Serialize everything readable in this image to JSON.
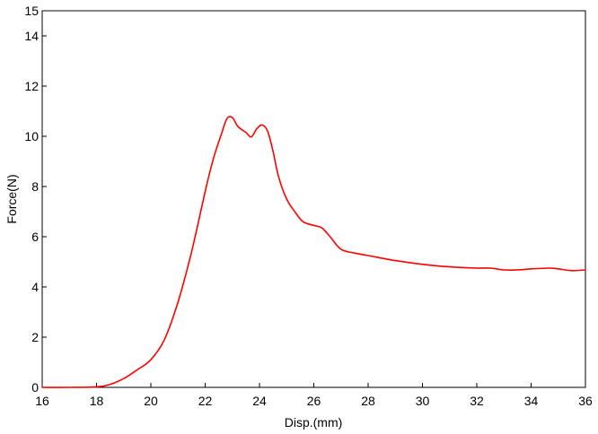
{
  "chart_data": {
    "type": "line",
    "title": "",
    "xlabel": "Disp.(mm)",
    "ylabel": "Force(N)",
    "xlim": [
      16,
      36
    ],
    "ylim": [
      0,
      15
    ],
    "xticks": [
      "16",
      "18",
      "20",
      "22",
      "24",
      "26",
      "28",
      "30",
      "32",
      "34",
      "36"
    ],
    "yticks": [
      "0",
      "2",
      "4",
      "6",
      "8",
      "10",
      "12",
      "14",
      "15"
    ],
    "grid": false,
    "legend": "none",
    "line_color": "#ff0000",
    "series": [
      {
        "x": [
          16.0,
          17.0,
          18.0,
          18.5,
          19.0,
          19.5,
          20.0,
          20.5,
          21.0,
          21.5,
          22.0,
          22.3,
          22.6,
          22.8,
          23.0,
          23.2,
          23.5,
          23.7,
          23.9,
          24.1,
          24.3,
          24.5,
          24.7,
          25.0,
          25.3,
          25.6,
          26.0,
          26.3,
          26.6,
          27.0,
          27.5,
          28.0,
          29.0,
          30.0,
          31.0,
          32.0,
          32.5,
          33.0,
          33.5,
          34.0,
          34.7,
          35.0,
          35.5,
          36.0
        ],
        "y": [
          0.0,
          0.0,
          0.02,
          0.12,
          0.35,
          0.7,
          1.1,
          1.9,
          3.4,
          5.4,
          7.8,
          9.1,
          10.1,
          10.7,
          10.75,
          10.4,
          10.15,
          9.98,
          10.3,
          10.45,
          10.2,
          9.4,
          8.4,
          7.5,
          7.0,
          6.6,
          6.45,
          6.35,
          6.0,
          5.5,
          5.35,
          5.25,
          5.05,
          4.9,
          4.8,
          4.75,
          4.75,
          4.68,
          4.68,
          4.72,
          4.75,
          4.72,
          4.65,
          4.68
        ]
      }
    ]
  }
}
